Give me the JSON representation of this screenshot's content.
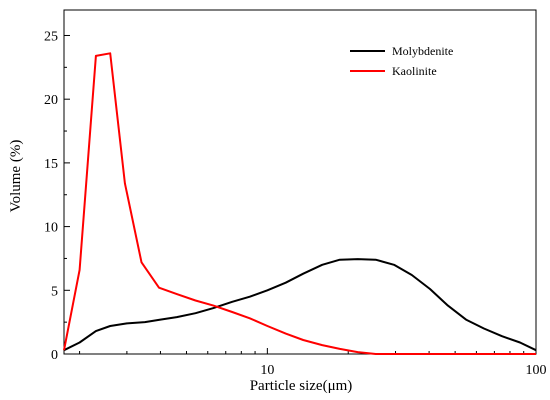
{
  "chart_data": {
    "type": "line",
    "title": "",
    "xlabel": "Particle size(μm)",
    "ylabel": "Volume (%)",
    "xscale": "log",
    "xlim": [
      1.75,
      100
    ],
    "ylim": [
      0,
      27
    ],
    "x_ticks": [
      {
        "value": 10,
        "label": "10"
      },
      {
        "value": 100,
        "label": "100"
      }
    ],
    "y_ticks": [
      {
        "value": 0,
        "label": "0"
      },
      {
        "value": 5,
        "label": "5"
      },
      {
        "value": 10,
        "label": "10"
      },
      {
        "value": 15,
        "label": "15"
      },
      {
        "value": 20,
        "label": "20"
      },
      {
        "value": 25,
        "label": "25"
      }
    ],
    "grid": false,
    "legend_position": "top-right",
    "series": [
      {
        "name": "Molybdenite",
        "color": "#000000",
        "x": [
          1.75,
          2.0,
          2.3,
          2.6,
          3.0,
          3.5,
          4.0,
          4.6,
          5.4,
          6.3,
          7.4,
          8.6,
          10.0,
          11.7,
          13.6,
          16.0,
          18.6,
          21.7,
          25.3,
          29.6,
          34.5,
          40.3,
          47.0,
          54.9,
          64.0,
          74.7,
          87.2,
          100.0
        ],
        "values": [
          0.3,
          0.9,
          1.8,
          2.2,
          2.4,
          2.5,
          2.7,
          2.9,
          3.2,
          3.6,
          4.1,
          4.5,
          5.0,
          5.6,
          6.3,
          7.0,
          7.4,
          7.45,
          7.4,
          7.0,
          6.2,
          5.1,
          3.8,
          2.7,
          2.0,
          1.4,
          0.9,
          0.3
        ]
      },
      {
        "name": "Kaolinite",
        "color": "#ff0000",
        "x": [
          1.75,
          2.0,
          2.3,
          2.6,
          2.95,
          3.4,
          3.95,
          4.6,
          5.4,
          6.3,
          7.4,
          8.6,
          10.0,
          11.7,
          13.6,
          16.0,
          18.6,
          21.7,
          25.3,
          100.0
        ],
        "values": [
          0.3,
          6.6,
          23.4,
          23.6,
          13.4,
          7.2,
          5.2,
          4.7,
          4.2,
          3.8,
          3.3,
          2.8,
          2.2,
          1.6,
          1.1,
          0.7,
          0.4,
          0.15,
          0.0,
          0.0
        ]
      }
    ]
  }
}
